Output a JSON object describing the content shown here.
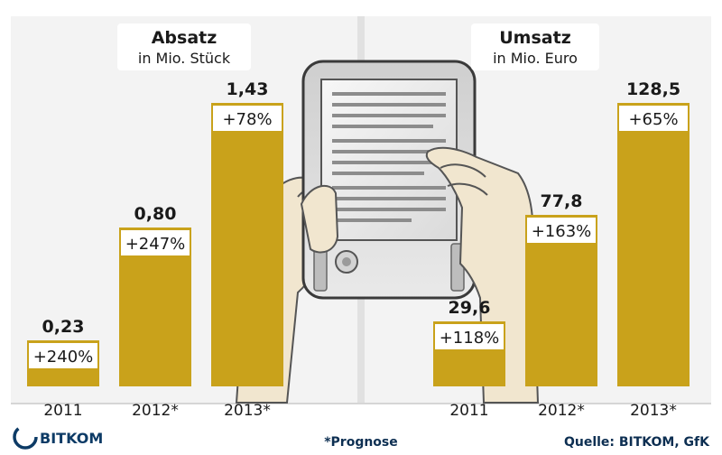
{
  "colors": {
    "bar": "#c9a21b",
    "panel": "#f3f3f3",
    "gutter": "#e1e1e1",
    "text": "#1a1a1a",
    "footer_text": "#0d2f52",
    "brand": "#0d3b66"
  },
  "chart_data": [
    {
      "type": "bar",
      "title": "Absatz",
      "subtitle": "in Mio. Stück",
      "categories": [
        "2011",
        "2012*",
        "2013*"
      ],
      "values": [
        0.23,
        0.8,
        1.43
      ],
      "value_labels": [
        "0,23",
        "0,80",
        "1,43"
      ],
      "growth_labels": [
        "+240%",
        "+247%",
        "+78%"
      ],
      "ylim": [
        0,
        1.43
      ],
      "grid": false,
      "legend": "none"
    },
    {
      "type": "bar",
      "title": "Umsatz",
      "subtitle": "in Mio. Euro",
      "categories": [
        "2011",
        "2012*",
        "2013*"
      ],
      "values": [
        29.6,
        77.8,
        128.5
      ],
      "value_labels": [
        "29,6",
        "77,8",
        "128,5"
      ],
      "growth_labels": [
        "+118%",
        "+163%",
        "+65%"
      ],
      "ylim": [
        0,
        128.5
      ],
      "grid": false,
      "legend": "none"
    }
  ],
  "footer": {
    "logo_text": "BITKOM",
    "note": "*Prognose",
    "source": "Quelle: BITKOM, GfK"
  },
  "illustration": {
    "icon": "ebook-reader-icon"
  }
}
